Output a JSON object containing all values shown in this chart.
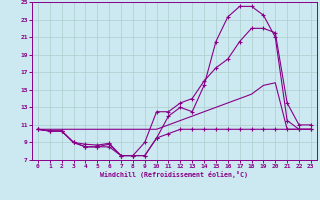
{
  "bg_color": "#cce8f0",
  "grid_color": "#aacfcc",
  "line_color": "#880088",
  "xlabel": "Windchill (Refroidissement éolien,°C)",
  "xlim_min": -0.5,
  "xlim_max": 23.5,
  "ylim_min": 7,
  "ylim_max": 25,
  "xticks": [
    0,
    1,
    2,
    3,
    4,
    5,
    6,
    7,
    8,
    9,
    10,
    11,
    12,
    13,
    14,
    15,
    16,
    17,
    18,
    19,
    20,
    21,
    22,
    23
  ],
  "yticks": [
    7,
    9,
    11,
    13,
    15,
    17,
    19,
    21,
    23,
    25
  ],
  "curve1_x": [
    0,
    1,
    2,
    3,
    4,
    5,
    6,
    7,
    8,
    9,
    10,
    11,
    12,
    13,
    14,
    15,
    16,
    17,
    18,
    19,
    20,
    21,
    22,
    23
  ],
  "curve1_y": [
    10.5,
    10.3,
    10.3,
    9.0,
    8.8,
    8.7,
    8.9,
    7.5,
    7.5,
    7.5,
    9.5,
    12.0,
    13.0,
    12.5,
    15.5,
    20.5,
    23.3,
    24.5,
    24.5,
    23.5,
    21.0,
    11.5,
    10.5,
    10.5
  ],
  "curve2_x": [
    0,
    1,
    2,
    3,
    4,
    5,
    6,
    7,
    8,
    9,
    10,
    11,
    12,
    13,
    14,
    15,
    16,
    17,
    18,
    19,
    20,
    21,
    22,
    23
  ],
  "curve2_y": [
    10.5,
    10.3,
    10.3,
    9.0,
    8.5,
    8.5,
    8.8,
    7.5,
    7.5,
    9.0,
    12.5,
    12.5,
    13.5,
    14.0,
    16.0,
    17.5,
    18.5,
    20.5,
    22.0,
    22.0,
    21.5,
    13.5,
    11.0,
    11.0
  ],
  "curve3_x": [
    0,
    1,
    2,
    3,
    4,
    5,
    6,
    7,
    8,
    9,
    10,
    11,
    12,
    13,
    14,
    15,
    16,
    17,
    18,
    19,
    20,
    21,
    22,
    23
  ],
  "curve3_y": [
    10.5,
    10.5,
    10.5,
    10.5,
    10.5,
    10.5,
    10.5,
    10.5,
    10.5,
    10.5,
    10.5,
    11.0,
    11.5,
    12.0,
    12.5,
    13.0,
    13.5,
    14.0,
    14.5,
    15.5,
    15.8,
    10.5,
    10.5,
    10.5
  ],
  "curve4_x": [
    0,
    1,
    2,
    3,
    4,
    5,
    6,
    7,
    8,
    9,
    10,
    11,
    12,
    13,
    14,
    15,
    16,
    17,
    18,
    19,
    20,
    21,
    22,
    23
  ],
  "curve4_y": [
    10.5,
    10.3,
    10.3,
    9.0,
    8.5,
    8.5,
    8.5,
    7.5,
    7.5,
    7.5,
    9.5,
    10.0,
    10.5,
    10.5,
    10.5,
    10.5,
    10.5,
    10.5,
    10.5,
    10.5,
    10.5,
    10.5,
    10.5,
    10.5
  ]
}
